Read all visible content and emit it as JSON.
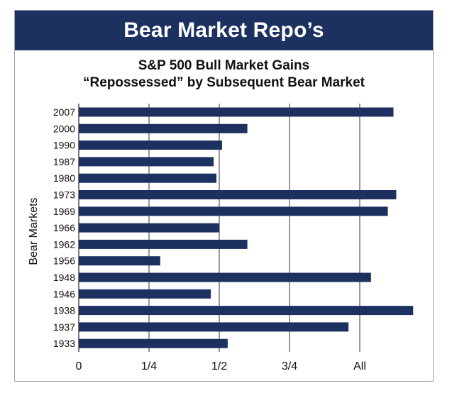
{
  "banner_title": "Bear Market Repo’s",
  "chart_data": {
    "type": "bar",
    "orientation": "horizontal",
    "title_line1": "S&P 500 Bull Market Gains",
    "title_line2": "“Repossessed” by Subsequent Bear Market",
    "ylabel": "Bear Markets",
    "xlabel": "",
    "categories": [
      "2007",
      "2000",
      "1990",
      "1987",
      "1980",
      "1973",
      "1969",
      "1966",
      "1962",
      "1956",
      "1948",
      "1946",
      "1938",
      "1937",
      "1933"
    ],
    "values": [
      1.12,
      0.6,
      0.51,
      0.48,
      0.49,
      1.13,
      1.1,
      0.5,
      0.6,
      0.29,
      1.04,
      0.47,
      1.19,
      0.96,
      0.53
    ],
    "xlim": [
      0,
      1.2
    ],
    "xticks": [
      0,
      0.25,
      0.5,
      0.75,
      1.0
    ],
    "xtick_labels": [
      "0",
      "1/4",
      "1/2",
      "3/4",
      "All"
    ],
    "grid": true,
    "bar_color": "#1d3160"
  }
}
